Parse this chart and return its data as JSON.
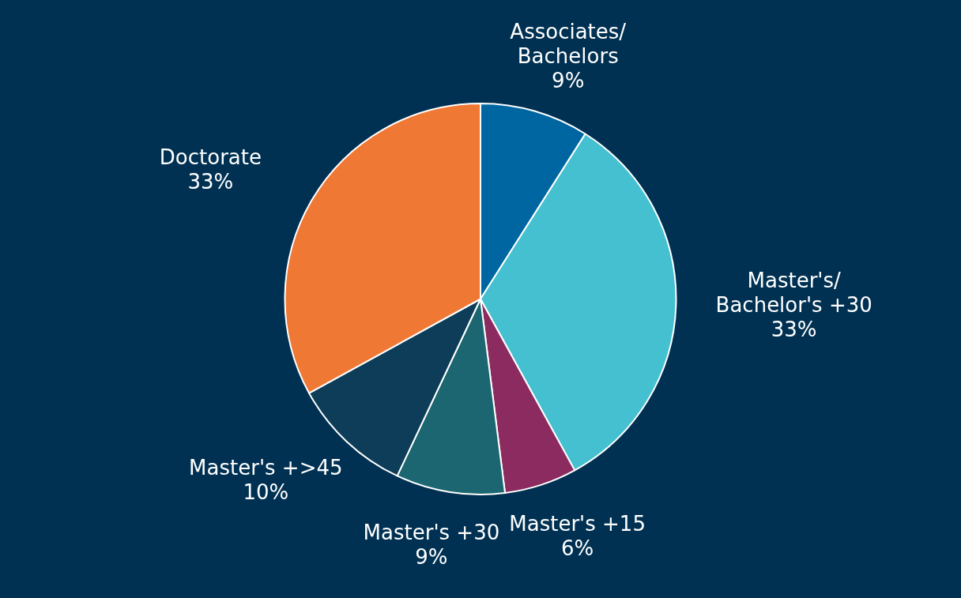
{
  "chart_data": {
    "type": "pie",
    "categories": [
      "Associates/\nBachelors",
      "Master's/\nBachelor's +30",
      "Master's +15",
      "Master's +30",
      "Master's +>45",
      "Doctorate"
    ],
    "values": [
      9,
      33,
      6,
      9,
      10,
      33
    ],
    "value_labels": [
      "9%",
      "33%",
      "6%",
      "9%",
      "10%",
      "33%"
    ],
    "colors": [
      "#0066a1",
      "#45c0d0",
      "#8b2b60",
      "#1b6670",
      "#0d3d58",
      "#f07835"
    ],
    "legend": false
  }
}
